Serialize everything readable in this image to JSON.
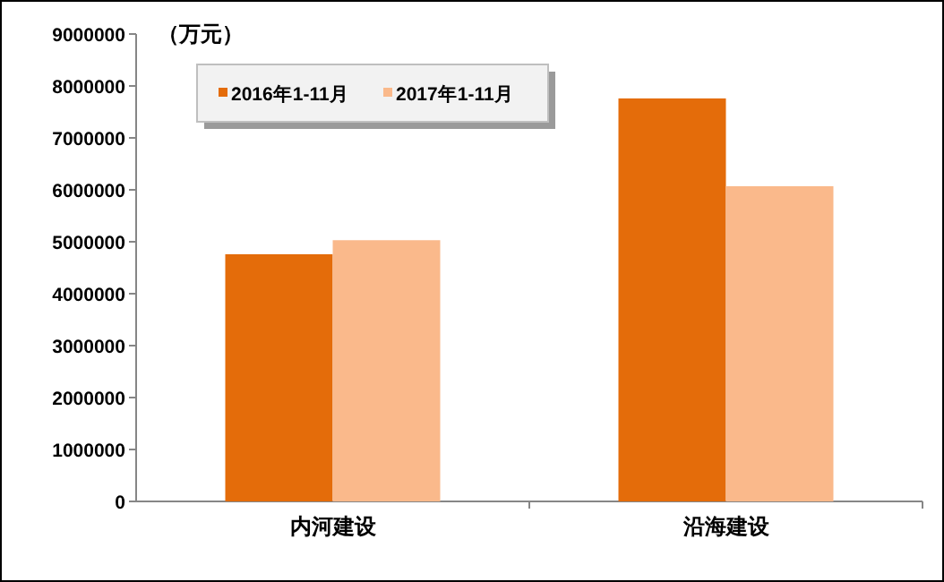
{
  "chart_data": {
    "type": "bar",
    "ylabel": "（万元）",
    "categories": [
      "内河建设",
      "沿海建设"
    ],
    "series": [
      {
        "name": "2016年1-11月",
        "color": "#e46c0a",
        "values": [
          4760000,
          7760000
        ]
      },
      {
        "name": "2017年1-11月",
        "color": "#fab98b",
        "values": [
          5030000,
          6070000
        ]
      }
    ],
    "ylim": [
      0,
      9000000
    ],
    "yticks": [
      0,
      1000000,
      2000000,
      3000000,
      4000000,
      5000000,
      6000000,
      7000000,
      8000000,
      9000000
    ],
    "legend": "top left",
    "grid": false
  }
}
